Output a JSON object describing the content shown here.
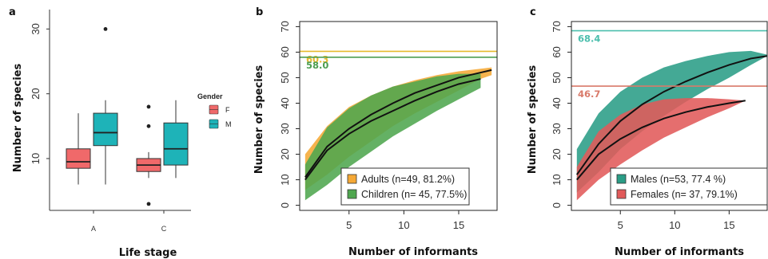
{
  "panels": {
    "a": {
      "letter": "a"
    },
    "b": {
      "letter": "b"
    },
    "c": {
      "letter": "c"
    }
  },
  "colors": {
    "boxF": "#f0696a",
    "boxM": "#1eb3b8",
    "adults": "#f5a836",
    "children": "#4fa64f",
    "males": "#2a9d86",
    "females": "#e15a5a",
    "refAdults": "#e6b92e",
    "refChildren": "#4c9e50",
    "refMales": "#4dbfae",
    "refFemales": "#d97a6a"
  },
  "chart_data": [
    {
      "id": "a",
      "type": "box",
      "xlabel": "Life stage",
      "ylabel": "Number of species",
      "categories": [
        "A",
        "C"
      ],
      "ylim": [
        2,
        33
      ],
      "yticks": [
        10,
        20,
        30
      ],
      "legend": {
        "title": "Gender",
        "placement": "right",
        "entries": [
          "F",
          "M"
        ]
      },
      "groups": [
        {
          "category": "A",
          "gender": "F",
          "whisker_low": 6,
          "q1": 8.5,
          "median": 9.5,
          "q3": 11.5,
          "whisker_high": 17,
          "outliers": []
        },
        {
          "category": "A",
          "gender": "M",
          "whisker_low": 6,
          "q1": 12,
          "median": 14,
          "q3": 17,
          "whisker_high": 19,
          "outliers": [
            30
          ]
        },
        {
          "category": "C",
          "gender": "F",
          "whisker_low": 7,
          "q1": 8,
          "median": 9,
          "q3": 10,
          "whisker_high": 11,
          "outliers": [
            3,
            15,
            18
          ]
        },
        {
          "category": "C",
          "gender": "M",
          "whisker_low": 7,
          "q1": 9,
          "median": 11.5,
          "q3": 15.5,
          "whisker_high": 19,
          "outliers": []
        }
      ]
    },
    {
      "id": "b",
      "type": "area",
      "xlabel": "Number of informants",
      "ylabel": "Number of species",
      "xlim": [
        0.5,
        18.5
      ],
      "ylim": [
        -2,
        72
      ],
      "xticks": [
        5,
        10,
        15
      ],
      "yticks": [
        0,
        10,
        20,
        30,
        40,
        50,
        60,
        70
      ],
      "legend_placement": "bottom-right",
      "reference_lines": [
        {
          "value": 60.3,
          "label": "60.3",
          "colorKey": "refAdults"
        },
        {
          "value": 58.0,
          "label": "58.0",
          "colorKey": "refChildren"
        }
      ],
      "series": [
        {
          "name": "Adults (n=49, 81.2%)",
          "colorKey": "adults",
          "x": [
            1,
            3,
            5,
            7,
            9,
            11,
            13,
            15,
            17,
            18
          ],
          "y": [
            11,
            23,
            30,
            35.5,
            40,
            44,
            47,
            50,
            52,
            53
          ],
          "lower": [
            6,
            12,
            19,
            25,
            31,
            36,
            40.5,
            45,
            49.5,
            51
          ],
          "upper": [
            20,
            31,
            38.5,
            43,
            46.5,
            49,
            51,
            52.5,
            53.5,
            54
          ]
        },
        {
          "name": "Children (n= 45, 77.5%)",
          "colorKey": "children",
          "x": [
            1,
            3,
            5,
            7,
            9,
            11,
            13,
            15,
            17
          ],
          "y": [
            10,
            21.5,
            28,
            33,
            37,
            41,
            44.5,
            47.5,
            49.5
          ],
          "lower": [
            2,
            8,
            15,
            21,
            27,
            32,
            37,
            41.5,
            46
          ],
          "upper": [
            16,
            30.5,
            38,
            43,
            46.5,
            48.5,
            50.5,
            51.5,
            51.5
          ]
        }
      ]
    },
    {
      "id": "c",
      "type": "area",
      "xlabel": "Number of informants",
      "ylabel": "Number of species",
      "xlim": [
        0.5,
        18.5
      ],
      "ylim": [
        -2,
        72
      ],
      "xticks": [
        5,
        10,
        15
      ],
      "yticks": [
        0,
        10,
        20,
        30,
        40,
        50,
        60,
        70
      ],
      "legend_placement": "bottom-right",
      "reference_lines": [
        {
          "value": 68.4,
          "label": "68.4",
          "colorKey": "refMales"
        },
        {
          "value": 46.7,
          "label": "46.7",
          "colorKey": "refFemales"
        }
      ],
      "series": [
        {
          "name": "Males (n=53, 77.4 %)",
          "colorKey": "males",
          "x": [
            1,
            3,
            5,
            7,
            9,
            11,
            13,
            15,
            17,
            18.5
          ],
          "y": [
            12,
            24,
            33,
            39.5,
            44.5,
            48.5,
            52,
            55,
            57.5,
            58.5
          ],
          "lower": [
            5,
            13,
            22,
            29,
            35,
            40.5,
            45.5,
            50,
            55,
            58.5
          ],
          "upper": [
            22,
            36,
            44.5,
            50,
            54,
            56.5,
            58.5,
            60,
            60.5,
            59
          ]
        },
        {
          "name": "Females (n= 37, 79.1%)",
          "colorKey": "females",
          "x": [
            1,
            3,
            5,
            7,
            9,
            11,
            13,
            15,
            16.5
          ],
          "y": [
            10,
            20,
            26,
            30.5,
            34,
            36.5,
            38.5,
            40,
            41
          ],
          "lower": [
            2,
            10,
            16,
            21.5,
            26.5,
            30.5,
            34.5,
            38,
            41
          ],
          "upper": [
            15,
            29,
            35.5,
            39.5,
            41.5,
            42,
            42,
            41.5,
            41
          ]
        }
      ]
    }
  ]
}
